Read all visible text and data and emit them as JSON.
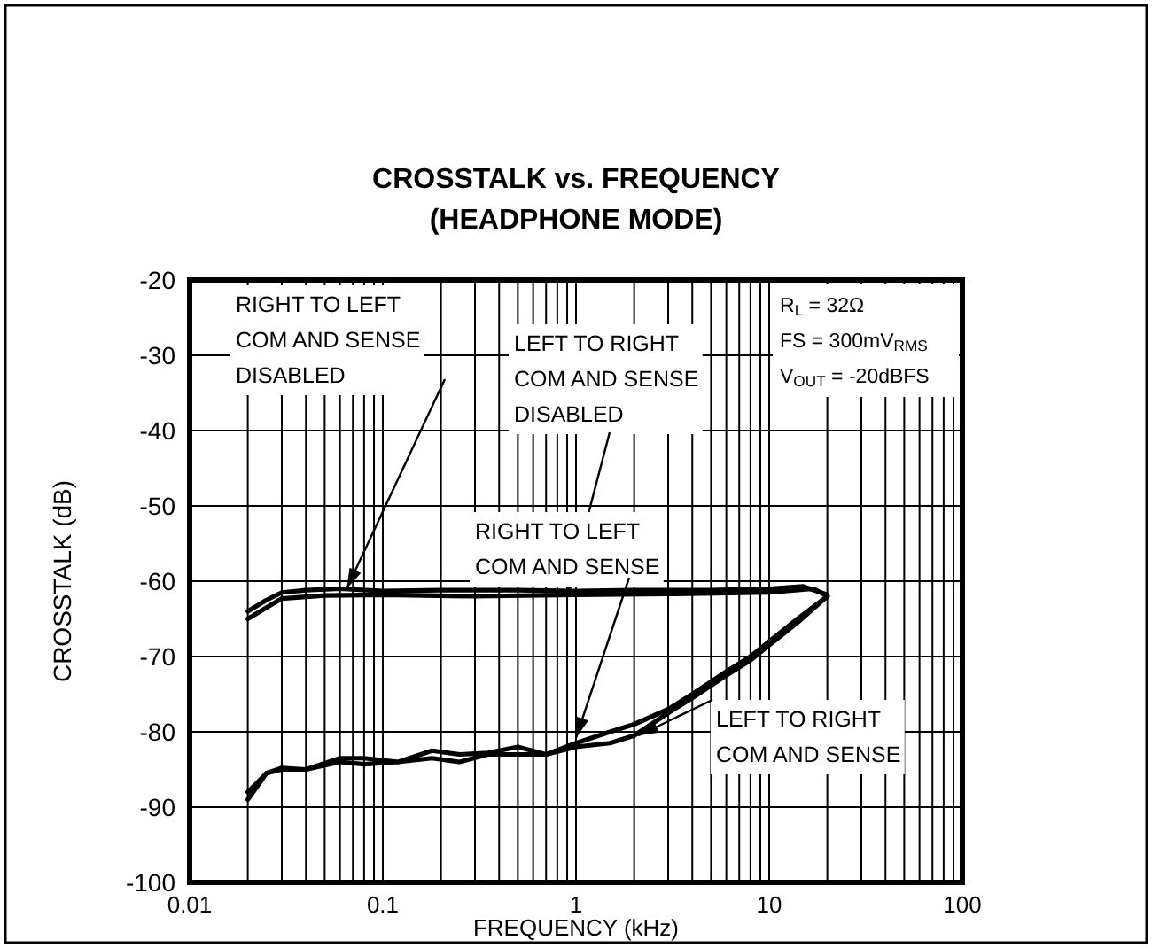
{
  "chart_data": {
    "type": "line",
    "title": "CROSSTALK vs. FREQUENCY\n(HEADPHONE MODE)",
    "xlabel": "FREQUENCY (kHz)",
    "ylabel": "CROSSTALK (dB)",
    "log": "x",
    "grid": true,
    "marker": "none",
    "line_style": "solid",
    "xlim": [
      0.01,
      100
    ],
    "xticks": [
      0.01,
      0.1,
      1,
      10,
      100
    ],
    "ylim": [
      -100,
      -20
    ],
    "yticks": [
      -100,
      -90,
      -80,
      -70,
      -60,
      -50,
      -40,
      -30,
      -20
    ],
    "series": [
      {
        "color": "#000000",
        "x": [
          0.02,
          0.025,
          0.03,
          0.04,
          0.06,
          0.1,
          0.2,
          0.5,
          1,
          2,
          5,
          10,
          15,
          20
        ],
        "values": [
          -64,
          -62.5,
          -61.5,
          -61.2,
          -61,
          -61.3,
          -61.2,
          -61.2,
          -61.3,
          -61.2,
          -61.2,
          -61,
          -60.7,
          -61.8
        ]
      },
      {
        "color": "#000000",
        "x": [
          0.02,
          0.025,
          0.03,
          0.05,
          0.1,
          0.3,
          1,
          3,
          10,
          17,
          20
        ],
        "values": [
          -65,
          -63.5,
          -62.3,
          -61.9,
          -61.8,
          -62,
          -61.8,
          -61.7,
          -61.5,
          -61,
          -62
        ]
      },
      {
        "color": "#000000",
        "x": [
          0.02,
          0.025,
          0.03,
          0.04,
          0.06,
          0.08,
          0.12,
          0.18,
          0.25,
          0.35,
          0.5,
          0.7,
          1,
          1.5,
          2,
          3,
          4,
          6,
          8,
          10,
          14,
          20
        ],
        "values": [
          -88,
          -85.5,
          -84.8,
          -85,
          -83.5,
          -83.5,
          -84,
          -82.5,
          -83,
          -82.8,
          -82,
          -83,
          -81.5,
          -80,
          -79,
          -77,
          -75,
          -72,
          -70,
          -68,
          -65,
          -62
        ]
      },
      {
        "color": "#000000",
        "x": [
          0.02,
          0.025,
          0.03,
          0.04,
          0.06,
          0.08,
          0.12,
          0.18,
          0.25,
          0.35,
          0.5,
          0.7,
          1,
          1.5,
          2,
          3,
          4,
          6,
          8,
          10,
          14,
          20
        ],
        "values": [
          -89,
          -85.5,
          -85,
          -85,
          -84,
          -84.3,
          -84,
          -83.5,
          -84,
          -83,
          -83,
          -83,
          -82,
          -81.5,
          -80.5,
          -77.5,
          -75.5,
          -72.5,
          -70.5,
          -68.5,
          -65.5,
          -62
        ]
      }
    ],
    "annotations": [
      {
        "text": "RIGHT TO LEFT\nCOM AND SENSE\nDISABLED",
        "x": 0.065,
        "y": -61
      },
      {
        "text": "LEFT TO RIGHT\nCOM AND SENSE\nDISABLED",
        "x": 0.9,
        "y": -61.8
      },
      {
        "text": "RIGHT TO LEFT\nCOM AND SENSE",
        "x": 1,
        "y": -80.8
      },
      {
        "text": "LEFT TO RIGHT\nCOM AND SENSE",
        "x": 2.1,
        "y": -80.5
      },
      "R$_{L}$ = 32Ω\nFS = 300mV$_{RMS}$\nV$_{OUT}$ = -20dBFS"
    ]
  }
}
